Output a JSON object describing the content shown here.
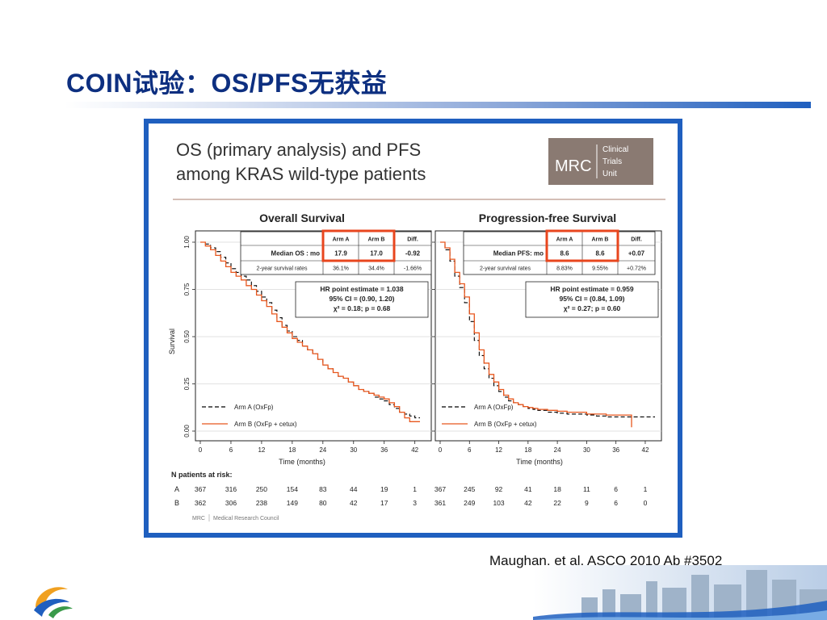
{
  "slide": {
    "title_latin": "COIN",
    "title_cn1": "试验：",
    "title_latin2": "OS/PFS",
    "title_cn2": "无获益",
    "citation": "Maughan, et al. ASCO 2010 Ab #3502",
    "colors": {
      "title": "#0d2f80",
      "frame": "#1f5fbf",
      "arm_a": "#000000",
      "arm_b": "#e8571e",
      "highlight": "#e8461e"
    }
  },
  "figure": {
    "heading_line1": "OS (primary analysis) and PFS",
    "heading_line2": "among KRAS wild-type patients",
    "mrc_logo": {
      "letters": "MRC",
      "line1": "Clinical",
      "line2": "Trials",
      "line3": "Unit"
    },
    "ylabel": "Survival",
    "xlabel": "Time (months)",
    "risk_header": "N patients at risk:",
    "footer_mrc": "MRC",
    "footer_council": "Medical Research Council"
  },
  "chart_data": [
    {
      "type": "line",
      "title": "Overall Survival",
      "xlabel": "Time (months)",
      "ylabel": "Survival",
      "xlim": [
        0,
        43
      ],
      "ylim": [
        0,
        1
      ],
      "xticks": [
        "0",
        "6",
        "12",
        "18",
        "24",
        "30",
        "36",
        "42"
      ],
      "yticks": [
        "0.00",
        "0.25",
        "0.50",
        "0.75",
        "1.00"
      ],
      "grid": true,
      "legend": "bottom-left",
      "series": [
        {
          "name": "Arm A (OxFp)",
          "style": "dashed",
          "x": [
            0,
            1,
            2,
            3,
            4,
            5,
            6,
            7,
            8,
            9,
            10,
            11,
            12,
            13,
            14,
            15,
            16,
            17,
            18,
            19,
            20,
            21,
            22,
            23,
            24,
            25,
            26,
            27,
            28,
            29,
            30,
            31,
            32,
            33,
            34,
            35,
            36,
            37,
            38,
            39,
            40,
            41,
            42,
            43
          ],
          "y": [
            1.0,
            0.99,
            0.97,
            0.95,
            0.92,
            0.89,
            0.86,
            0.84,
            0.82,
            0.8,
            0.77,
            0.74,
            0.71,
            0.68,
            0.64,
            0.6,
            0.56,
            0.53,
            0.5,
            0.48,
            0.45,
            0.43,
            0.41,
            0.38,
            0.35,
            0.33,
            0.31,
            0.29,
            0.28,
            0.26,
            0.24,
            0.22,
            0.21,
            0.2,
            0.18,
            0.17,
            0.16,
            0.14,
            0.12,
            0.1,
            0.09,
            0.08,
            0.07,
            0.07
          ]
        },
        {
          "name": "Arm B (OxFp + cetux)",
          "style": "solid",
          "x": [
            0,
            1,
            2,
            3,
            4,
            5,
            6,
            7,
            8,
            9,
            10,
            11,
            12,
            13,
            14,
            15,
            16,
            17,
            18,
            19,
            20,
            21,
            22,
            23,
            24,
            25,
            26,
            27,
            28,
            29,
            30,
            31,
            32,
            33,
            34,
            35,
            36,
            37,
            38,
            39,
            40,
            41,
            42,
            43
          ],
          "y": [
            1.0,
            0.98,
            0.96,
            0.93,
            0.9,
            0.87,
            0.84,
            0.82,
            0.8,
            0.77,
            0.75,
            0.72,
            0.69,
            0.66,
            0.62,
            0.58,
            0.55,
            0.52,
            0.49,
            0.47,
            0.45,
            0.43,
            0.41,
            0.38,
            0.35,
            0.33,
            0.31,
            0.29,
            0.28,
            0.26,
            0.24,
            0.22,
            0.21,
            0.2,
            0.19,
            0.18,
            0.17,
            0.15,
            0.13,
            0.1,
            0.07,
            0.05,
            0.05,
            0.05
          ]
        }
      ],
      "summary_table": {
        "header": [
          "",
          "Arm A",
          "Arm B",
          "Diff."
        ],
        "rows": [
          [
            "Median OS : mo",
            "17.9",
            "17.0",
            "-0.92"
          ],
          [
            "2-year survival rates",
            "36.1%",
            "34.4%",
            "-1.66%"
          ]
        ]
      },
      "hr_box": [
        "HR point estimate = 1.038",
        "95% CI = (0.90, 1.20)",
        "χ² = 0.18; p = 0.68"
      ],
      "risk_table": {
        "A": [
          "367",
          "316",
          "250",
          "154",
          "83",
          "44",
          "19",
          "1"
        ],
        "B": [
          "362",
          "306",
          "238",
          "149",
          "80",
          "42",
          "17",
          "3"
        ]
      }
    },
    {
      "type": "line",
      "title": "Progression-free Survival",
      "xlabel": "Time (months)",
      "ylabel": "Survival",
      "xlim": [
        0,
        43
      ],
      "ylim": [
        0,
        1
      ],
      "xticks": [
        "0",
        "6",
        "12",
        "18",
        "24",
        "30",
        "36",
        "42"
      ],
      "grid": true,
      "legend": "bottom-left",
      "series": [
        {
          "name": "Arm A (OxFp)",
          "style": "dashed",
          "x": [
            0,
            1,
            2,
            3,
            4,
            5,
            6,
            7,
            8,
            9,
            10,
            11,
            12,
            13,
            14,
            15,
            16,
            17,
            18,
            19,
            20,
            22,
            24,
            26,
            28,
            30,
            32,
            34,
            36,
            38,
            40,
            42,
            44
          ],
          "y": [
            1.0,
            0.96,
            0.9,
            0.82,
            0.76,
            0.68,
            0.58,
            0.48,
            0.4,
            0.33,
            0.28,
            0.24,
            0.21,
            0.18,
            0.16,
            0.15,
            0.14,
            0.13,
            0.12,
            0.115,
            0.11,
            0.1,
            0.095,
            0.09,
            0.09,
            0.085,
            0.08,
            0.075,
            0.075,
            0.075,
            0.075,
            0.075,
            0.075
          ]
        },
        {
          "name": "Arm B (OxFp + cetux)",
          "style": "solid",
          "x": [
            0,
            1,
            2,
            3,
            4,
            5,
            6,
            7,
            8,
            9,
            10,
            11,
            12,
            13,
            14,
            15,
            16,
            17,
            18,
            19,
            20,
            22,
            24,
            26,
            28,
            30,
            32,
            34,
            36,
            38,
            39,
            39.2
          ],
          "y": [
            1.0,
            0.97,
            0.91,
            0.84,
            0.78,
            0.71,
            0.62,
            0.52,
            0.43,
            0.36,
            0.3,
            0.26,
            0.22,
            0.19,
            0.17,
            0.15,
            0.14,
            0.13,
            0.125,
            0.12,
            0.115,
            0.11,
            0.105,
            0.1,
            0.1,
            0.09,
            0.09,
            0.085,
            0.085,
            0.085,
            0.085,
            0.02
          ]
        }
      ],
      "summary_table": {
        "header": [
          "",
          "Arm A",
          "Arm B",
          "Diff."
        ],
        "rows": [
          [
            "Median PFS: mo",
            "8.6",
            "8.6",
            "+0.07"
          ],
          [
            "2-year survival rates",
            "8.83%",
            "9.55%",
            "+0.72%"
          ]
        ]
      },
      "hr_box": [
        "HR point estimate = 0.959",
        "95% CI = (0.84, 1.09)",
        "χ² = 0.27; p = 0.60"
      ],
      "risk_table": {
        "A": [
          "367",
          "245",
          "92",
          "41",
          "18",
          "11",
          "6",
          "1"
        ],
        "B": [
          "361",
          "249",
          "103",
          "42",
          "22",
          "9",
          "6",
          "0"
        ]
      }
    }
  ]
}
